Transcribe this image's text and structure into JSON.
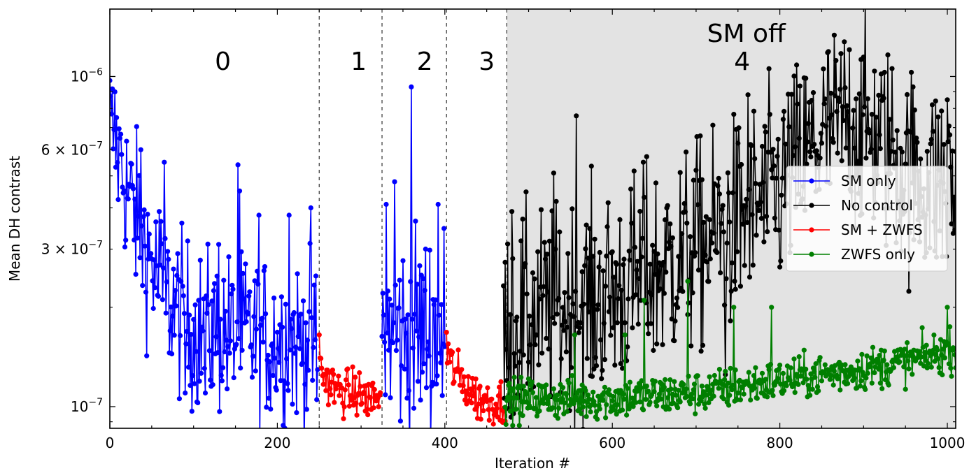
{
  "chart_data": {
    "type": "line",
    "xlabel": "Iteration #",
    "ylabel": "Mean DH contrast",
    "xlim": [
      0,
      1010
    ],
    "ylim": [
      8.6e-08,
      1.6e-06
    ],
    "yscale": "log",
    "x_ticks": [
      0,
      200,
      400,
      600,
      800,
      1000
    ],
    "x_tick_labels": [
      "0",
      "200",
      "400",
      "600",
      "800",
      "1000"
    ],
    "y_ticks": [
      1e-07,
      3e-07,
      6e-07,
      1e-06
    ],
    "y_tick_labels": [
      {
        "base": "10",
        "exp": "−7"
      },
      {
        "base": "3 × 10",
        "exp": "−7"
      },
      {
        "base": "6 × 10",
        "exp": "−7"
      },
      {
        "base": "10",
        "exp": "−6"
      }
    ],
    "grid": false,
    "legend_position": "right",
    "phase_boundaries": [
      250,
      325,
      402
    ],
    "phase_labels": [
      {
        "text": "0",
        "x": 135
      },
      {
        "text": "1",
        "x": 297
      },
      {
        "text": "2",
        "x": 376
      },
      {
        "text": "3",
        "x": 450
      },
      {
        "text": "4",
        "x": 755
      }
    ],
    "shaded_region": {
      "x_start": 474,
      "x_end": 1010,
      "label": "SM off",
      "label_x": 760,
      "color": "#e3e3e3"
    },
    "series": [
      {
        "name": "SM only",
        "color": "#0000ff",
        "segments": [
          {
            "x_start": 0,
            "x_end": 248,
            "shape": [
              [
                0,
                7.3e-07
              ],
              [
                20,
                4.6e-07
              ],
              [
                40,
                3.2e-07
              ],
              [
                60,
                2.3e-07
              ],
              [
                100,
                1.7e-07
              ],
              [
                150,
                1.65e-07
              ],
              [
                200,
                1.6e-07
              ],
              [
                248,
                1.55e-07
              ]
            ],
            "spread": 0.35,
            "spikes": [
              [
                2,
                7.7e-07
              ],
              [
                5,
                6.9e-07
              ],
              [
                12,
                6.5e-07
              ],
              [
                37,
                6e-07
              ],
              [
                65,
                5.5e-07
              ],
              [
                153,
                5.4e-07
              ],
              [
                155,
                4.5e-07
              ],
              [
                240,
                4e-07
              ],
              [
                214,
                3.8e-07
              ],
              [
                178,
                3.8e-07
              ],
              [
                130,
                3.1e-07
              ],
              [
                59,
                3.9e-07
              ],
              [
                114,
                1.1e-07
              ],
              [
                90,
                1.1e-07
              ],
              [
                190,
                1.06e-07
              ],
              [
                247,
                1.05e-07
              ]
            ]
          },
          {
            "x_start": 325,
            "x_end": 400,
            "shape": [
              [
                325,
                1.65e-07
              ],
              [
                400,
                1.7e-07
              ]
            ],
            "spread": 0.45,
            "spikes": [
              [
                360,
                9.3e-07
              ],
              [
                340,
                4.8e-07
              ],
              [
                392,
                4.1e-07
              ],
              [
                330,
                4.1e-07
              ],
              [
                397,
                1.08e-07
              ],
              [
                352,
                1.3e-07
              ]
            ]
          }
        ]
      },
      {
        "name": "No control",
        "color": "#000000",
        "segments": [
          {
            "x_start": 470,
            "x_end": 1010,
            "shape": [
              [
                470,
                1.75e-07
              ],
              [
                600,
                2.2e-07
              ],
              [
                700,
                3e-07
              ],
              [
                760,
                3.8e-07
              ],
              [
                800,
                4.6e-07
              ],
              [
                850,
                6.5e-07
              ],
              [
                880,
                7.3e-07
              ],
              [
                920,
                6.4e-07
              ],
              [
                960,
                5e-07
              ],
              [
                1010,
                4.6e-07
              ]
            ],
            "spread": 0.45,
            "spikes": [
              [
                474,
                1.2e-07
              ],
              [
                478,
                1.9e-07
              ],
              [
                762,
                8.8e-07
              ],
              [
                557,
                7.6e-07
              ],
              [
                530,
                5.1e-07
              ],
              [
                637,
                5.5e-07
              ],
              [
                700,
                5.2e-07
              ],
              [
                870,
                8.6e-07
              ],
              [
                1000,
                8.5e-07
              ],
              [
                480,
                3.9e-07
              ],
              [
                578,
                1.3e-07
              ],
              [
                735,
                1.25e-07
              ]
            ]
          }
        ]
      },
      {
        "name": "SM + ZWFS",
        "color": "#ff0000",
        "segments": [
          {
            "x_start": 250,
            "x_end": 323,
            "shape": [
              [
                250,
                1.3e-07
              ],
              [
                270,
                1.12e-07
              ],
              [
                323,
                1.06e-07
              ]
            ],
            "spread": 0.1,
            "spikes": [
              [
                250,
                1.65e-07
              ],
              [
                252,
                1.4e-07
              ],
              [
                305,
                9.7e-08
              ],
              [
                312,
                9.8e-08
              ]
            ]
          },
          {
            "x_start": 402,
            "x_end": 472,
            "shape": [
              [
                402,
                1.4e-07
              ],
              [
                420,
                1.2e-07
              ],
              [
                440,
                1.05e-07
              ],
              [
                472,
                1.03e-07
              ]
            ],
            "spread": 0.1,
            "spikes": [
              [
                402,
                1.68e-07
              ],
              [
                404,
                1.55e-07
              ],
              [
                460,
                9.6e-08
              ],
              [
                470,
                9.7e-08
              ]
            ]
          }
        ]
      },
      {
        "name": "ZWFS only",
        "color": "#007f00",
        "segments": [
          {
            "x_start": 472,
            "x_end": 1010,
            "shape": [
              [
                472,
                1.05e-07
              ],
              [
                600,
                1.06e-07
              ],
              [
                700,
                1.1e-07
              ],
              [
                800,
                1.2e-07
              ],
              [
                900,
                1.3e-07
              ],
              [
                960,
                1.38e-07
              ],
              [
                1010,
                1.5e-07
              ]
            ],
            "spread": 0.09,
            "spikes": [
              [
                690,
                2.4e-07
              ],
              [
                638,
                2.1e-07
              ],
              [
                745,
                2e-07
              ],
              [
                790,
                2e-07
              ],
              [
                1000,
                2e-07
              ],
              [
                493,
                9.4e-08
              ],
              [
                580,
                9.3e-08
              ],
              [
                615,
                1.65e-07
              ],
              [
                555,
                1.65e-07
              ]
            ]
          }
        ]
      }
    ]
  }
}
